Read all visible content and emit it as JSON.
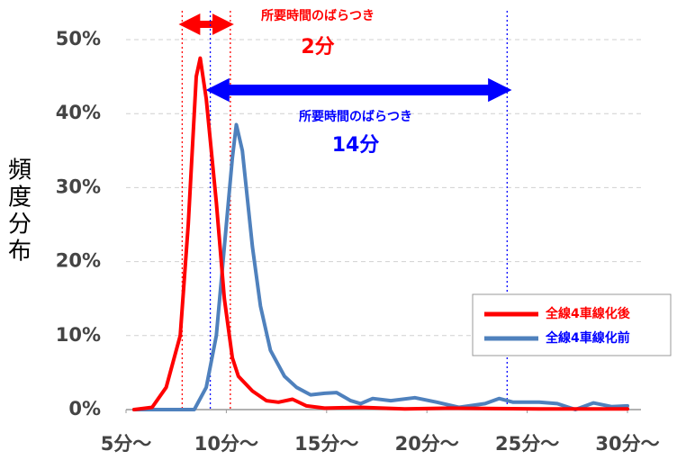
{
  "chart_data": {
    "type": "line",
    "ylabel": "頻度分布",
    "xlim": [
      5,
      30
    ],
    "xticks": [
      {
        "value": 5,
        "label": "5分～"
      },
      {
        "value": 10,
        "label": "10分～"
      },
      {
        "value": 15,
        "label": "15分～"
      },
      {
        "value": 20,
        "label": "20分～"
      },
      {
        "value": 25,
        "label": "25分～"
      },
      {
        "value": 30,
        "label": "30分～"
      }
    ],
    "ylim": [
      0,
      50
    ],
    "yticks": [
      {
        "value": 0,
        "label": "0%"
      },
      {
        "value": 10,
        "label": "10%"
      },
      {
        "value": 20,
        "label": "20%"
      },
      {
        "value": 30,
        "label": "30%"
      },
      {
        "value": 40,
        "label": "40%"
      },
      {
        "value": 50,
        "label": "50%"
      }
    ],
    "grid": true,
    "legend": "lower right",
    "series": [
      {
        "name": "全線4車線化後",
        "color": "#ff0000",
        "x": [
          5.4,
          6.3,
          7.0,
          7.7,
          8.1,
          8.5,
          8.7,
          9.0,
          9.5,
          9.9,
          10.3,
          10.6,
          11.3,
          12.0,
          12.6,
          13.3,
          14.0,
          14.9,
          16.7,
          18.9,
          21.2,
          25.6,
          30.0
        ],
        "values": [
          0,
          0.3,
          3,
          10,
          25,
          45,
          47.5,
          42,
          28,
          15,
          7,
          4.5,
          2.5,
          1.2,
          1.0,
          1.4,
          0.5,
          0.2,
          0.3,
          0.1,
          0.2,
          0.1,
          0.1
        ]
      },
      {
        "name": "全線4車線化前",
        "color": "#4f81bd",
        "x": [
          5.4,
          8.4,
          9.0,
          9.5,
          9.9,
          10.3,
          10.5,
          10.8,
          11.3,
          11.7,
          12.2,
          12.9,
          13.5,
          14.2,
          14.9,
          15.5,
          16.2,
          16.7,
          17.3,
          18.2,
          19.4,
          20.5,
          21.6,
          22.9,
          23.6,
          24.3,
          25.6,
          26.5,
          27.4,
          28.3,
          29.2,
          30.0
        ],
        "values": [
          0,
          0,
          3,
          10,
          22,
          34,
          38.5,
          35,
          22,
          14,
          8,
          4.5,
          3,
          2,
          2.2,
          2.3,
          1.2,
          0.8,
          1.5,
          1.2,
          1.6,
          1,
          0.3,
          0.8,
          1.5,
          1,
          1,
          0.8,
          0,
          0.9,
          0.4,
          0.5
        ]
      }
    ],
    "annotations": [
      {
        "x": [
          7.8,
          10.2
        ],
        "color": "#ff0000",
        "label": "所要時間のばらつき",
        "text": "2分"
      },
      {
        "x": [
          9.2,
          24.0
        ],
        "color": "#0000ff",
        "label": "所要時間のばらつき",
        "text": "14分"
      }
    ]
  }
}
